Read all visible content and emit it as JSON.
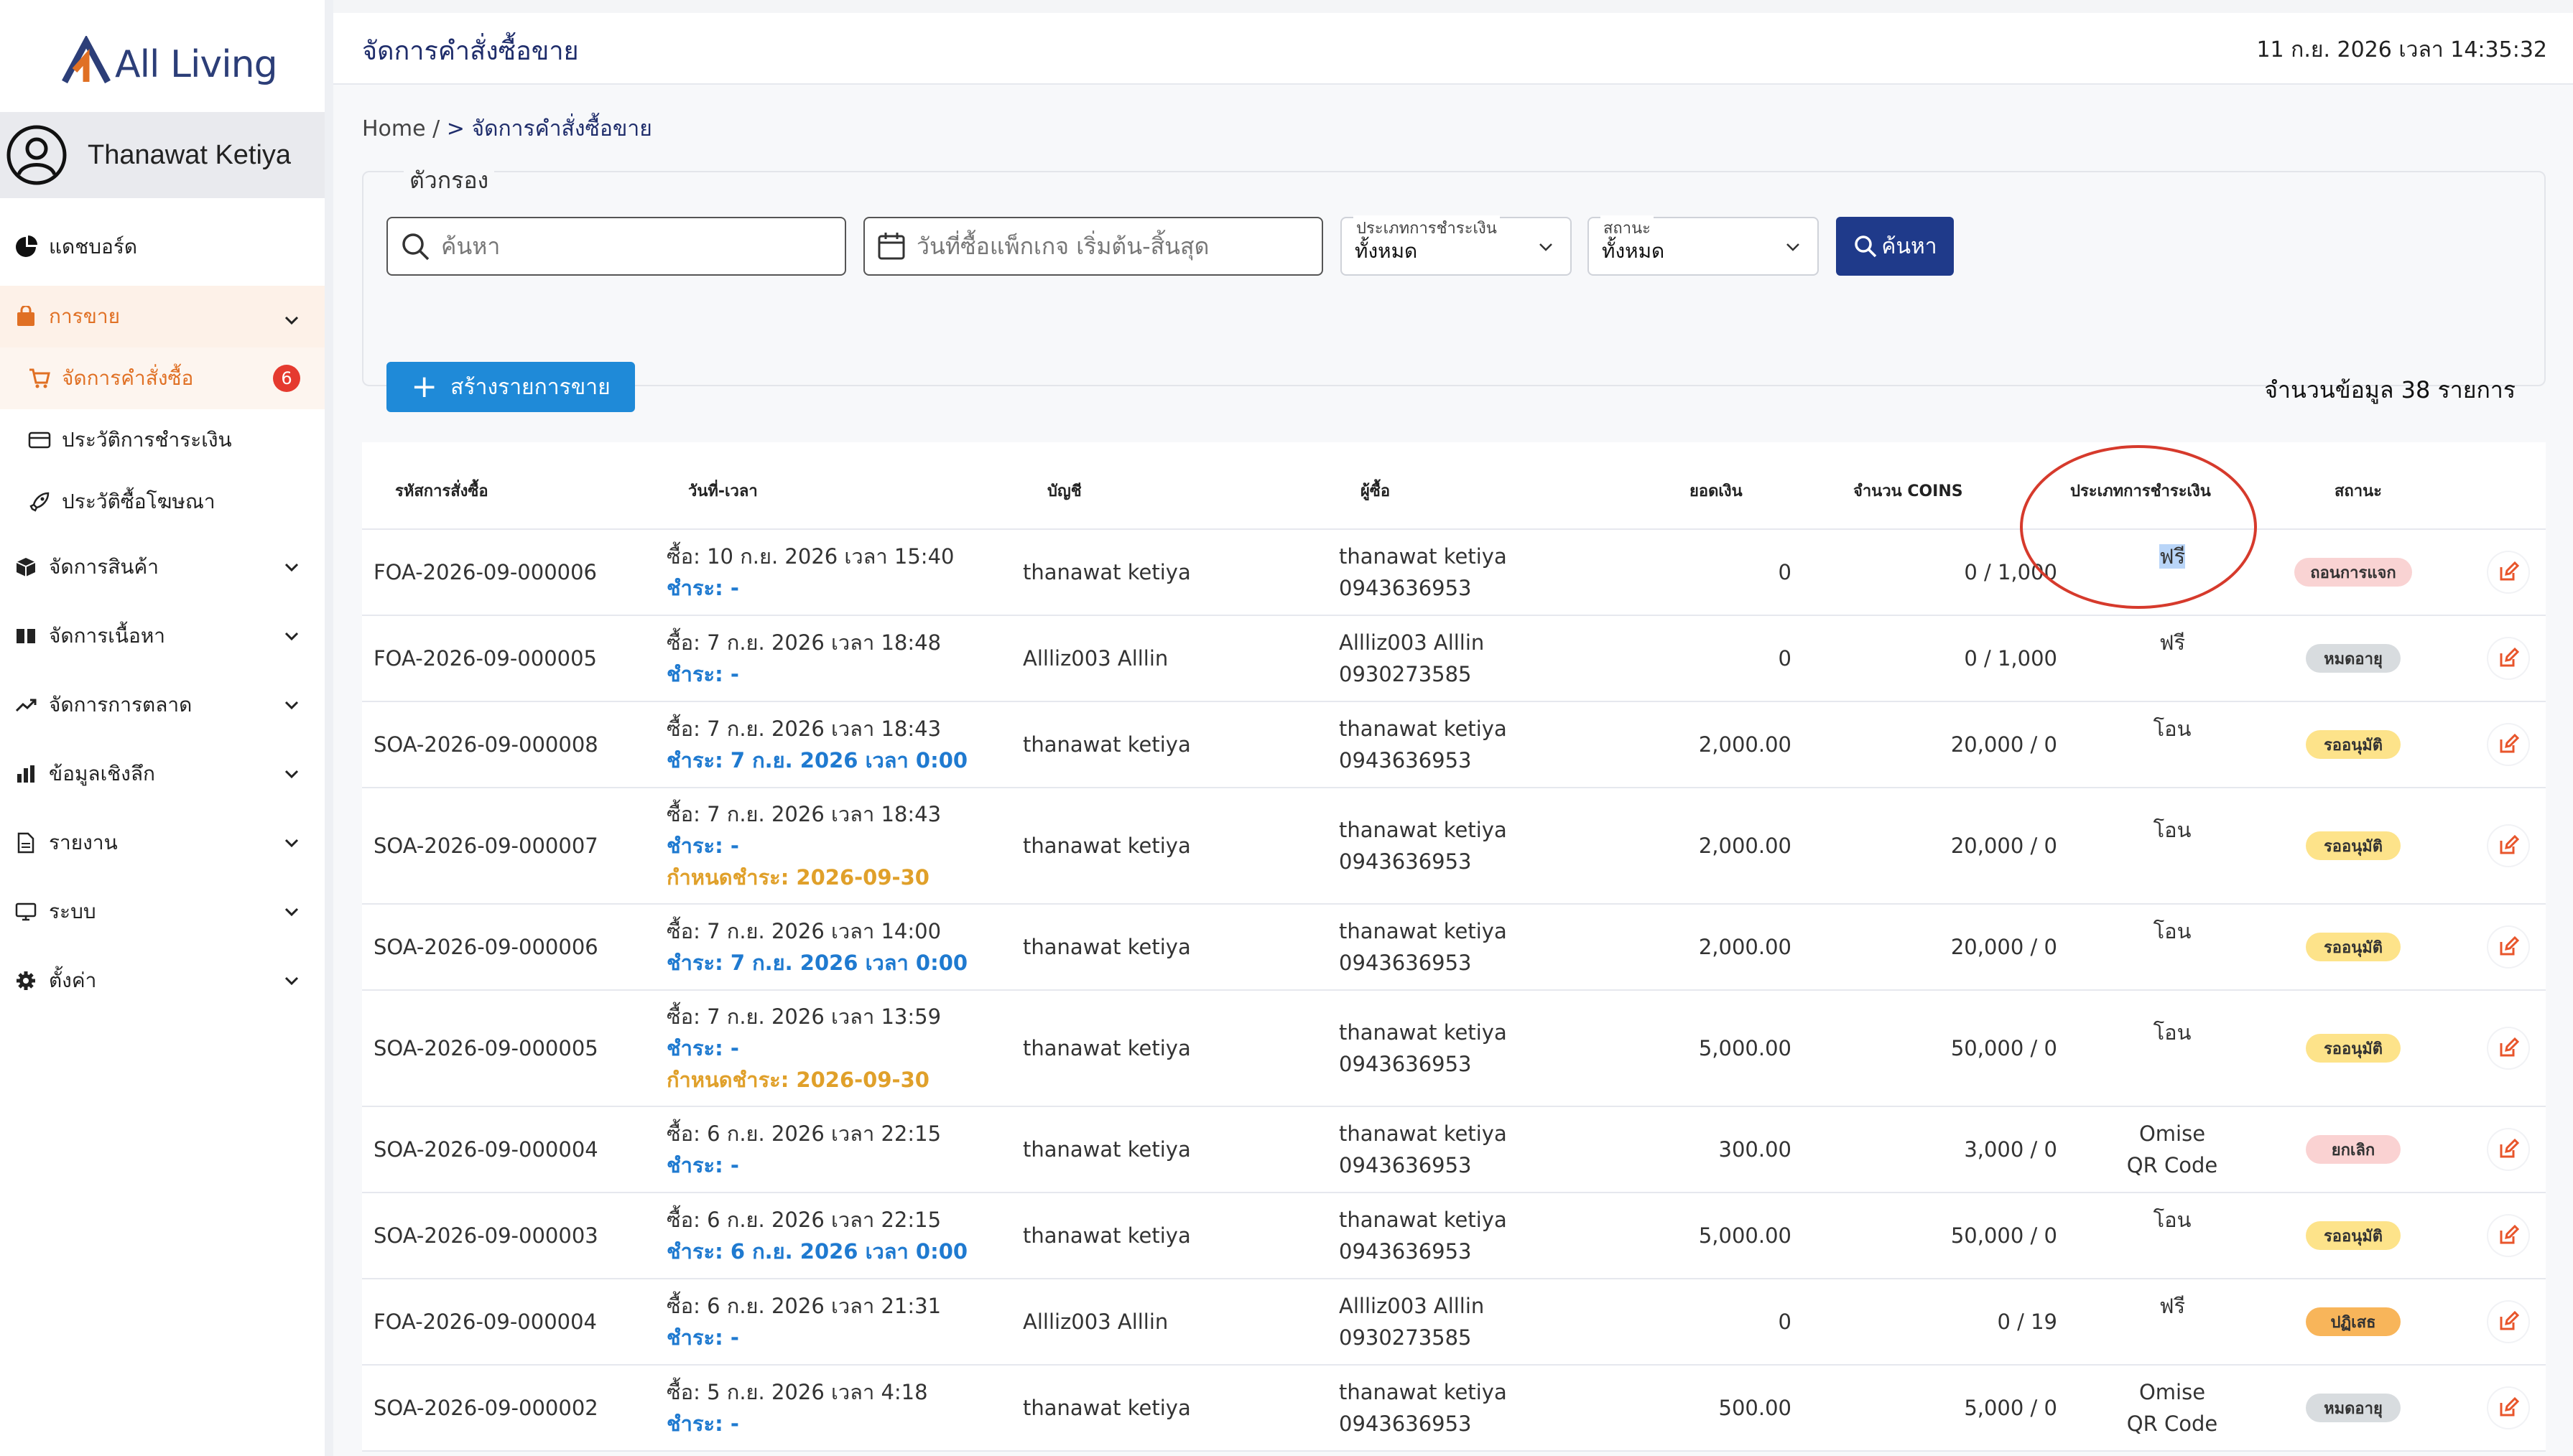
{
  "brand": {
    "name": "All Living"
  },
  "user": {
    "name": "Thanawat Ketiya"
  },
  "sidebar": {
    "items": [
      {
        "label": "แดชบอร์ด",
        "icon": "pie-chart-icon"
      },
      {
        "label": "การขาย",
        "icon": "bag-icon"
      },
      {
        "label": "จัดการสินค้า",
        "icon": "box-icon"
      },
      {
        "label": "จัดการเนื้อหา",
        "icon": "book-icon"
      },
      {
        "label": "จัดการการตลาด",
        "icon": "trend-icon"
      },
      {
        "label": "ข้อมูลเชิงลึก",
        "icon": "bar-chart-icon"
      },
      {
        "label": "รายงาน",
        "icon": "document-icon"
      },
      {
        "label": "ระบบ",
        "icon": "monitor-icon"
      },
      {
        "label": "ตั้งค่า",
        "icon": "gear-icon"
      }
    ],
    "sales_sub": [
      {
        "label": "จัดการคำสั่งซื้อ",
        "icon": "cart-icon",
        "badge": "6"
      },
      {
        "label": "ประวัติการชำระเงิน",
        "icon": "card-icon"
      },
      {
        "label": "ประวัติซื้อโฆษณา",
        "icon": "rocket-icon"
      }
    ]
  },
  "header": {
    "title": "จัดการคำสั่งซื้อขาย",
    "datetime": "11 ก.ย. 2026 เวลา 14:35:32"
  },
  "breadcrumb": {
    "home": "Home",
    "sep": " / ",
    "current": "> จัดการคำสั่งซื้อขาย"
  },
  "filter": {
    "legend": "ตัวกรอง",
    "search_placeholder": "ค้นหา",
    "date_placeholder": "วันที่ซื้อแพ็กเกจ เริ่มต้น-สิ้นสุด",
    "payment_type_label": "ประเภทการชำระเงิน",
    "payment_type_value": "ทั้งหมด",
    "status_label": "สถานะ",
    "status_value": "ทั้งหมด",
    "search_button": "ค้นหา"
  },
  "create_button": "สร้างรายการขาย",
  "record_count": "จำนวนข้อมูล 38 รายการ",
  "table": {
    "headers": [
      "รหัสการสั่งซื้อ",
      "วันที่-เวลา",
      "บัญชี",
      "ผู้ซื้อ",
      "ยอดเงิน",
      "จำนวน COINS",
      "ประเภทการชำระเงิน",
      "สถานะ"
    ],
    "rows": [
      {
        "id": "FOA-2026-09-000006",
        "ordered": "ซื้อ: 10 ก.ย. 2026 เวลา 15:40",
        "paid": "ชำระ: -",
        "due": "",
        "account": "thanawat ketiya",
        "buyer": "thanawat ketiya",
        "phone": "0943636953",
        "amount": "0",
        "coins": "0 / 1,000",
        "pay1": "ฟรี",
        "pay2": "",
        "status": "ถอนการแจก",
        "status_kind": "withdraw"
      },
      {
        "id": "FOA-2026-09-000005",
        "ordered": "ซื้อ: 7 ก.ย. 2026 เวลา 18:48",
        "paid": "ชำระ: -",
        "due": "",
        "account": "Allliz003 Alllin",
        "buyer": "Allliz003 Alllin",
        "phone": "0930273585",
        "amount": "0",
        "coins": "0 / 1,000",
        "pay1": "ฟรี",
        "pay2": "",
        "status": "หมดอายุ",
        "status_kind": "expired"
      },
      {
        "id": "SOA-2026-09-000008",
        "ordered": "ซื้อ: 7 ก.ย. 2026 เวลา 18:43",
        "paid": "ชำระ: 7 ก.ย. 2026 เวลา 0:00",
        "due": "",
        "account": "thanawat ketiya",
        "buyer": "thanawat ketiya",
        "phone": "0943636953",
        "amount": "2,000.00",
        "coins": "20,000 / 0",
        "pay1": "โอน",
        "pay2": "",
        "status": "รออนุมัติ",
        "status_kind": "pending"
      },
      {
        "id": "SOA-2026-09-000007",
        "ordered": "ซื้อ: 7 ก.ย. 2026 เวลา 18:43",
        "paid": "ชำระ: -",
        "due": "กำหนดชำระ: 2026-09-30",
        "account": "thanawat ketiya",
        "buyer": "thanawat ketiya",
        "phone": "0943636953",
        "amount": "2,000.00",
        "coins": "20,000 / 0",
        "pay1": "โอน",
        "pay2": "",
        "status": "รออนุมัติ",
        "status_kind": "pending"
      },
      {
        "id": "SOA-2026-09-000006",
        "ordered": "ซื้อ: 7 ก.ย. 2026 เวลา 14:00",
        "paid": "ชำระ: 7 ก.ย. 2026 เวลา 0:00",
        "due": "",
        "account": "thanawat ketiya",
        "buyer": "thanawat ketiya",
        "phone": "0943636953",
        "amount": "2,000.00",
        "coins": "20,000 / 0",
        "pay1": "โอน",
        "pay2": "",
        "status": "รออนุมัติ",
        "status_kind": "pending"
      },
      {
        "id": "SOA-2026-09-000005",
        "ordered": "ซื้อ: 7 ก.ย. 2026 เวลา 13:59",
        "paid": "ชำระ: -",
        "due": "กำหนดชำระ: 2026-09-30",
        "account": "thanawat ketiya",
        "buyer": "thanawat ketiya",
        "phone": "0943636953",
        "amount": "5,000.00",
        "coins": "50,000 / 0",
        "pay1": "โอน",
        "pay2": "",
        "status": "รออนุมัติ",
        "status_kind": "pending"
      },
      {
        "id": "SOA-2026-09-000004",
        "ordered": "ซื้อ: 6 ก.ย. 2026 เวลา 22:15",
        "paid": "ชำระ: -",
        "due": "",
        "account": "thanawat ketiya",
        "buyer": "thanawat ketiya",
        "phone": "0943636953",
        "amount": "300.00",
        "coins": "3,000 / 0",
        "pay1": "Omise",
        "pay2": "QR Code",
        "status": "ยกเลิก",
        "status_kind": "cancel"
      },
      {
        "id": "SOA-2026-09-000003",
        "ordered": "ซื้อ: 6 ก.ย. 2026 เวลา 22:15",
        "paid": "ชำระ: 6 ก.ย. 2026 เวลา 0:00",
        "due": "",
        "account": "thanawat ketiya",
        "buyer": "thanawat ketiya",
        "phone": "0943636953",
        "amount": "5,000.00",
        "coins": "50,000 / 0",
        "pay1": "โอน",
        "pay2": "",
        "status": "รออนุมัติ",
        "status_kind": "pending"
      },
      {
        "id": "FOA-2026-09-000004",
        "ordered": "ซื้อ: 6 ก.ย. 2026 เวลา 21:31",
        "paid": "ชำระ: -",
        "due": "",
        "account": "Allliz003 Alllin",
        "buyer": "Allliz003 Alllin",
        "phone": "0930273585",
        "amount": "0",
        "coins": "0 / 19",
        "pay1": "ฟรี",
        "pay2": "",
        "status": "ปฏิเสธ",
        "status_kind": "reject"
      },
      {
        "id": "SOA-2026-09-000002",
        "ordered": "ซื้อ: 5 ก.ย. 2026 เวลา 4:18",
        "paid": "ชำระ: -",
        "due": "",
        "account": "thanawat ketiya",
        "buyer": "thanawat ketiya",
        "phone": "0943636953",
        "amount": "500.00",
        "coins": "5,000 / 0",
        "pay1": "Omise",
        "pay2": "QR Code",
        "status": "หมดอายุ",
        "status_kind": "expired"
      }
    ]
  },
  "colors": {
    "accent": "#e07024",
    "primary": "#1f3a8a",
    "create": "#1f8ad8",
    "paid_blue": "#1f7ad0",
    "due_orange": "#e0a02a",
    "annotation": "#d63a2c"
  }
}
